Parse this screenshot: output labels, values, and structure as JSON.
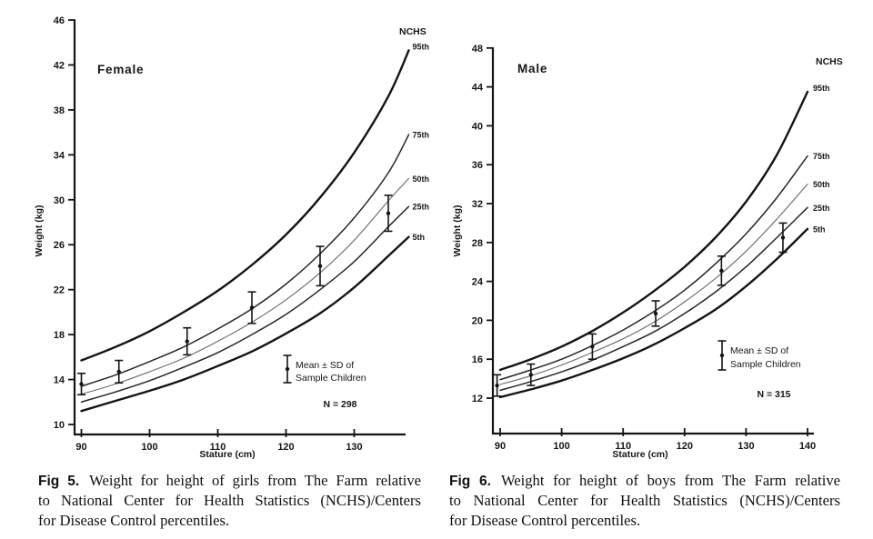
{
  "page": {
    "background": "#ffffff"
  },
  "chart_data": [
    {
      "type": "line",
      "title": "Female",
      "corner_label": "NCHS",
      "xlabel": "Stature (cm)",
      "ylabel": "Weight (kg)",
      "xticks": [
        90,
        100,
        110,
        120,
        130
      ],
      "yticks": [
        10,
        14,
        18,
        22,
        26,
        30,
        34,
        38,
        42,
        46
      ],
      "xlim": [
        89,
        137.5
      ],
      "ylim": [
        9.1,
        46
      ],
      "grid": false,
      "curve_x": [
        90,
        95,
        100,
        105,
        110,
        115,
        120,
        125,
        130,
        135,
        138
      ],
      "series": [
        {
          "name": "95th",
          "emphasis": "bold",
          "values": [
            15.7,
            16.9,
            18.3,
            20.0,
            21.9,
            24.2,
            26.9,
            30.2,
            34.2,
            39.2,
            43.3
          ]
        },
        {
          "name": "75th",
          "emphasis": "medium",
          "values": [
            13.4,
            14.4,
            15.6,
            16.9,
            18.5,
            20.3,
            22.5,
            25.2,
            28.4,
            32.4,
            35.8
          ]
        },
        {
          "name": "50th",
          "emphasis": "light",
          "values": [
            12.7,
            13.6,
            14.7,
            15.9,
            17.4,
            19.1,
            21.1,
            23.5,
            26.4,
            29.9,
            31.9
          ]
        },
        {
          "name": "25th",
          "emphasis": "medium",
          "values": [
            12.0,
            12.9,
            13.9,
            15.1,
            16.4,
            18.0,
            19.8,
            22.0,
            24.5,
            27.6,
            29.4
          ]
        },
        {
          "name": "5th",
          "emphasis": "bold",
          "values": [
            11.2,
            12.1,
            13.0,
            14.0,
            15.2,
            16.5,
            18.1,
            19.9,
            22.2,
            25.0,
            26.7
          ]
        }
      ],
      "sample_points": [
        {
          "stature": 90,
          "mean": 13.6,
          "sd": 0.95
        },
        {
          "stature": 95.5,
          "mean": 14.7,
          "sd": 1.0
        },
        {
          "stature": 105.5,
          "mean": 17.4,
          "sd": 1.2
        },
        {
          "stature": 115,
          "mean": 20.4,
          "sd": 1.4
        },
        {
          "stature": 125,
          "mean": 24.1,
          "sd": 1.75
        },
        {
          "stature": 135,
          "mean": 28.8,
          "sd": 1.6
        }
      ],
      "legend": {
        "line1": "Mean ± SD of",
        "line2": "Sample Children",
        "n_label": "N = 298"
      }
    },
    {
      "type": "line",
      "title": "Male",
      "corner_label": "NCHS",
      "xlabel": "Stature (cm)",
      "ylabel": "Weight (kg)",
      "xticks": [
        90,
        100,
        110,
        120,
        130,
        140
      ],
      "yticks": [
        12,
        16,
        20,
        24,
        28,
        32,
        36,
        40,
        44,
        48
      ],
      "xlim": [
        88.8,
        141
      ],
      "ylim": [
        8.4,
        48
      ],
      "grid": false,
      "curve_x": [
        90,
        95,
        100,
        105,
        110,
        115,
        120,
        125,
        130,
        135,
        140
      ],
      "series": [
        {
          "name": "95th",
          "emphasis": "bold",
          "values": [
            14.9,
            16.0,
            17.3,
            18.9,
            20.8,
            23.0,
            25.5,
            28.5,
            32.2,
            37.0,
            43.5
          ]
        },
        {
          "name": "75th",
          "emphasis": "medium",
          "values": [
            13.9,
            14.9,
            16.0,
            17.4,
            19.0,
            20.9,
            23.1,
            25.8,
            28.9,
            32.6,
            36.9
          ]
        },
        {
          "name": "50th",
          "emphasis": "light",
          "values": [
            13.4,
            14.3,
            15.4,
            16.7,
            18.1,
            19.8,
            21.9,
            24.3,
            27.1,
            30.4,
            34.0
          ]
        },
        {
          "name": "25th",
          "emphasis": "medium",
          "values": [
            12.8,
            13.7,
            14.7,
            15.9,
            17.3,
            18.8,
            20.7,
            22.9,
            25.5,
            28.5,
            31.6
          ]
        },
        {
          "name": "5th",
          "emphasis": "bold",
          "values": [
            12.1,
            12.9,
            13.8,
            14.9,
            16.1,
            17.5,
            19.2,
            21.1,
            23.5,
            26.3,
            29.4
          ]
        }
      ],
      "sample_points": [
        {
          "stature": 89.5,
          "mean": 13.3,
          "sd": 1.1
        },
        {
          "stature": 95,
          "mean": 14.4,
          "sd": 1.1
        },
        {
          "stature": 105,
          "mean": 17.3,
          "sd": 1.3
        },
        {
          "stature": 115.3,
          "mean": 20.7,
          "sd": 1.3
        },
        {
          "stature": 126,
          "mean": 25.1,
          "sd": 1.5
        },
        {
          "stature": 136,
          "mean": 28.5,
          "sd": 1.5
        }
      ],
      "legend": {
        "line1": "Mean ± SD of",
        "line2": "Sample Children",
        "n_label": "N = 315"
      }
    }
  ],
  "captions": [
    {
      "fig_label": "Fig 5.",
      "lines": [
        "Weight for height of girls from The Farm relative",
        "to National Center for Health Statistics (NCHS)/Centers",
        "for Disease Control percentiles."
      ]
    },
    {
      "fig_label": "Fig 6.",
      "lines": [
        "Weight for height of boys from The Farm relative",
        "to National Center for Health Statistics (NCHS)/Centers",
        "for Disease Control percentiles."
      ]
    }
  ]
}
